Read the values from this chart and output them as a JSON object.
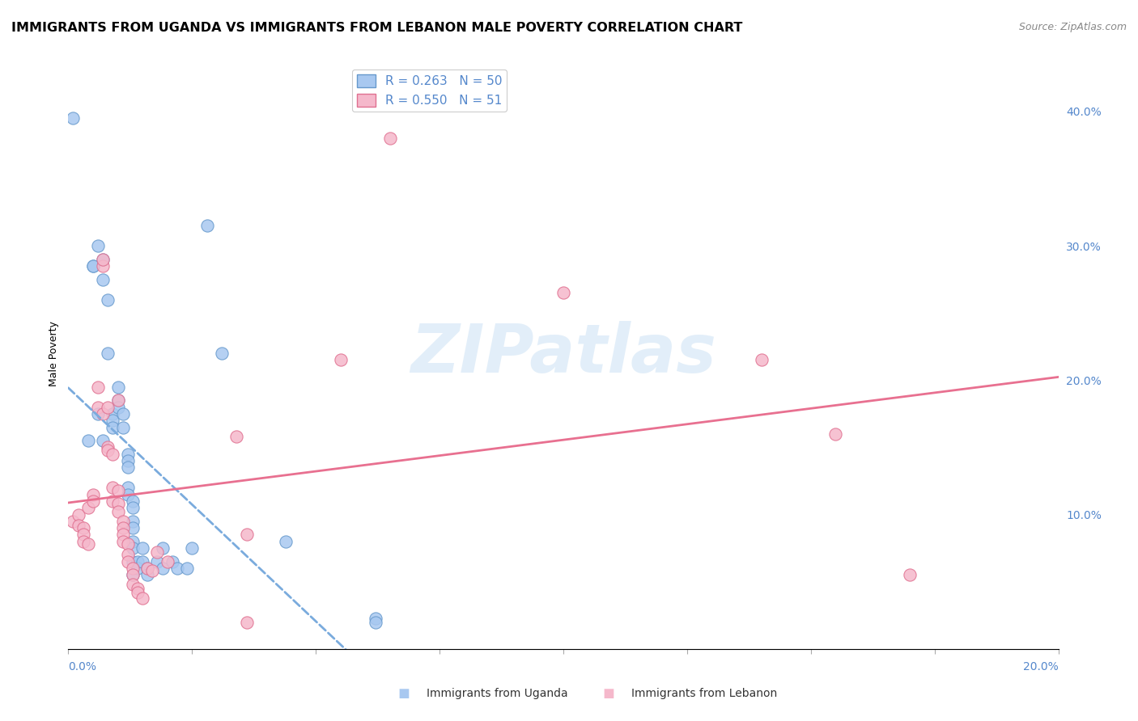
{
  "title": "IMMIGRANTS FROM UGANDA VS IMMIGRANTS FROM LEBANON MALE POVERTY CORRELATION CHART",
  "source": "Source: ZipAtlas.com",
  "ylabel": "Male Poverty",
  "right_yticks": [
    "40.0%",
    "30.0%",
    "20.0%",
    "10.0%"
  ],
  "right_ytick_vals": [
    0.4,
    0.3,
    0.2,
    0.1
  ],
  "xlim": [
    0.0,
    0.2
  ],
  "ylim": [
    0.0,
    0.44
  ],
  "legend_r1": "R = 0.263   N = 50",
  "legend_r2": "R = 0.550   N = 51",
  "uganda_scatter": [
    [
      0.001,
      0.395
    ],
    [
      0.004,
      0.155
    ],
    [
      0.005,
      0.285
    ],
    [
      0.005,
      0.285
    ],
    [
      0.006,
      0.175
    ],
    [
      0.006,
      0.3
    ],
    [
      0.007,
      0.155
    ],
    [
      0.007,
      0.29
    ],
    [
      0.007,
      0.275
    ],
    [
      0.008,
      0.26
    ],
    [
      0.008,
      0.22
    ],
    [
      0.009,
      0.175
    ],
    [
      0.009,
      0.17
    ],
    [
      0.009,
      0.165
    ],
    [
      0.01,
      0.195
    ],
    [
      0.01,
      0.185
    ],
    [
      0.01,
      0.18
    ],
    [
      0.011,
      0.175
    ],
    [
      0.011,
      0.165
    ],
    [
      0.012,
      0.145
    ],
    [
      0.012,
      0.14
    ],
    [
      0.012,
      0.135
    ],
    [
      0.012,
      0.12
    ],
    [
      0.012,
      0.115
    ],
    [
      0.013,
      0.11
    ],
    [
      0.013,
      0.105
    ],
    [
      0.013,
      0.095
    ],
    [
      0.013,
      0.09
    ],
    [
      0.013,
      0.08
    ],
    [
      0.013,
      0.075
    ],
    [
      0.013,
      0.065
    ],
    [
      0.013,
      0.055
    ],
    [
      0.014,
      0.065
    ],
    [
      0.014,
      0.06
    ],
    [
      0.015,
      0.075
    ],
    [
      0.015,
      0.065
    ],
    [
      0.016,
      0.06
    ],
    [
      0.016,
      0.055
    ],
    [
      0.018,
      0.065
    ],
    [
      0.019,
      0.06
    ],
    [
      0.019,
      0.075
    ],
    [
      0.021,
      0.065
    ],
    [
      0.022,
      0.06
    ],
    [
      0.024,
      0.06
    ],
    [
      0.025,
      0.075
    ],
    [
      0.028,
      0.315
    ],
    [
      0.031,
      0.22
    ],
    [
      0.044,
      0.08
    ],
    [
      0.062,
      0.023
    ],
    [
      0.062,
      0.02
    ]
  ],
  "lebanon_scatter": [
    [
      0.001,
      0.095
    ],
    [
      0.002,
      0.1
    ],
    [
      0.002,
      0.092
    ],
    [
      0.003,
      0.09
    ],
    [
      0.003,
      0.085
    ],
    [
      0.003,
      0.08
    ],
    [
      0.004,
      0.078
    ],
    [
      0.004,
      0.105
    ],
    [
      0.005,
      0.115
    ],
    [
      0.005,
      0.11
    ],
    [
      0.006,
      0.195
    ],
    [
      0.006,
      0.18
    ],
    [
      0.007,
      0.285
    ],
    [
      0.007,
      0.29
    ],
    [
      0.007,
      0.175
    ],
    [
      0.008,
      0.18
    ],
    [
      0.008,
      0.15
    ],
    [
      0.008,
      0.148
    ],
    [
      0.009,
      0.145
    ],
    [
      0.009,
      0.11
    ],
    [
      0.009,
      0.12
    ],
    [
      0.01,
      0.185
    ],
    [
      0.01,
      0.118
    ],
    [
      0.01,
      0.108
    ],
    [
      0.01,
      0.102
    ],
    [
      0.011,
      0.095
    ],
    [
      0.011,
      0.09
    ],
    [
      0.011,
      0.085
    ],
    [
      0.011,
      0.08
    ],
    [
      0.012,
      0.078
    ],
    [
      0.012,
      0.07
    ],
    [
      0.012,
      0.065
    ],
    [
      0.013,
      0.06
    ],
    [
      0.013,
      0.055
    ],
    [
      0.013,
      0.048
    ],
    [
      0.014,
      0.045
    ],
    [
      0.014,
      0.042
    ],
    [
      0.015,
      0.038
    ],
    [
      0.016,
      0.06
    ],
    [
      0.017,
      0.058
    ],
    [
      0.018,
      0.072
    ],
    [
      0.02,
      0.065
    ],
    [
      0.034,
      0.158
    ],
    [
      0.036,
      0.085
    ],
    [
      0.036,
      0.02
    ],
    [
      0.055,
      0.215
    ],
    [
      0.065,
      0.38
    ],
    [
      0.1,
      0.265
    ],
    [
      0.14,
      0.215
    ],
    [
      0.155,
      0.16
    ],
    [
      0.17,
      0.055
    ]
  ],
  "uganda_color": "#a8c8f0",
  "lebanon_color": "#f5b8cb",
  "uganda_edge_color": "#6699cc",
  "lebanon_edge_color": "#e07090",
  "uganda_line_color": "#7aabdd",
  "lebanon_line_color": "#e87090",
  "grid_color": "#dddddd",
  "background_color": "#ffffff",
  "title_fontsize": 11.5,
  "axis_label_fontsize": 9,
  "tick_fontsize": 10,
  "right_tick_color": "#5588cc",
  "watermark_color": "#d0e4f5",
  "watermark_alpha": 0.6
}
